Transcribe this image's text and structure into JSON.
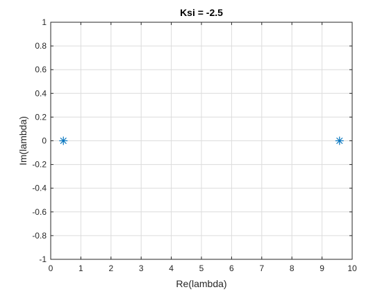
{
  "chart_data": {
    "type": "scatter",
    "title": "Ksi = -2.5",
    "xlabel": "Re(lambda)",
    "ylabel": "Im(lambda)",
    "xlim": [
      0,
      10
    ],
    "ylim": [
      -1,
      1
    ],
    "xticks": [
      0,
      1,
      2,
      3,
      4,
      5,
      6,
      7,
      8,
      9,
      10
    ],
    "yticks": [
      -1,
      -0.8,
      -0.6,
      -0.4,
      -0.2,
      0,
      0.2,
      0.4,
      0.6,
      0.8,
      1
    ],
    "grid": true,
    "marker": "asterisk",
    "series": [
      {
        "x": [
          0.42,
          9.58
        ],
        "y": [
          0,
          0
        ]
      }
    ]
  },
  "colors": {
    "marker": "#0072BD",
    "grid": "#dcdcdc",
    "axis": "#262626",
    "background": "#ffffff"
  }
}
